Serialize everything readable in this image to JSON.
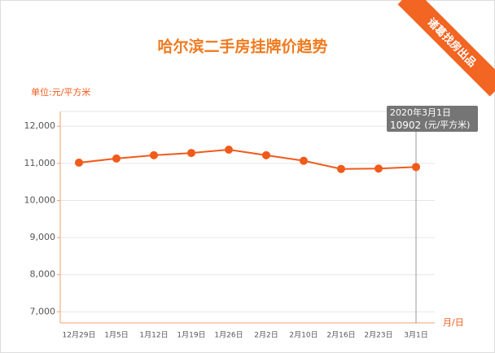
{
  "chart_data": {
    "type": "line",
    "title": "哈尔滨二手房挂牌价趋势",
    "y_label": "单位:元/平方米",
    "x_label": "月/日",
    "categories": [
      "12月29日",
      "1月5日",
      "1月12日",
      "1月19日",
      "1月26日",
      "2月2日",
      "2月10日",
      "2月16日",
      "2月23日",
      "3月1日"
    ],
    "values": [
      11020,
      11130,
      11220,
      11280,
      11370,
      11220,
      11070,
      10850,
      10860,
      10902
    ],
    "color": "#f05a1a",
    "ylim": [
      6700,
      12400
    ],
    "yticks": [
      {
        "value": 7000,
        "label": "7,000"
      },
      {
        "value": 8000,
        "label": "8,000"
      },
      {
        "value": 9000,
        "label": "9,000"
      },
      {
        "value": 10000,
        "label": "10,000"
      },
      {
        "value": 11000,
        "label": "11,000"
      },
      {
        "value": 12000,
        "label": "12,000"
      }
    ],
    "grid": true,
    "tooltip": {
      "date": "2020年3月1日",
      "unit": "(元/平方米)"
    }
  },
  "badge": "诸葛找房出品"
}
